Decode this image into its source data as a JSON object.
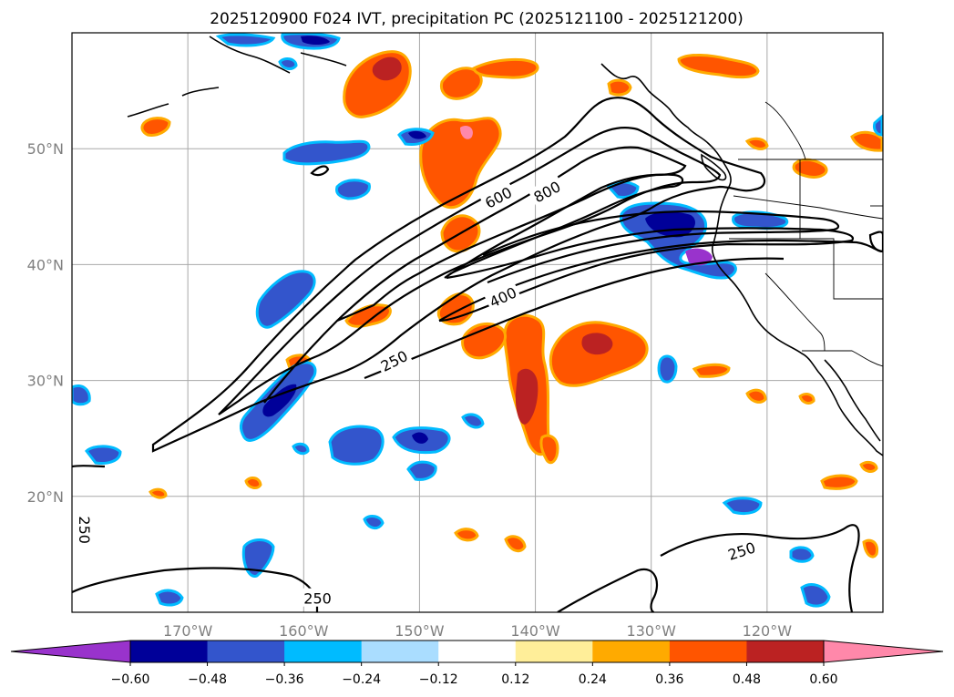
{
  "title": "2025120900 F024 IVT, precipitation PC (2025121100 - 2025121200)",
  "map": {
    "lon_range": [
      -180,
      -110
    ],
    "lat_range": [
      10,
      60
    ],
    "lon_ticks": [
      {
        "value": -170,
        "label": "170°W"
      },
      {
        "value": -160,
        "label": "160°W"
      },
      {
        "value": -150,
        "label": "150°W"
      },
      {
        "value": -140,
        "label": "140°W"
      },
      {
        "value": -130,
        "label": "130°W"
      },
      {
        "value": -120,
        "label": "120°W"
      }
    ],
    "lat_ticks": [
      {
        "value": 20,
        "label": "20°N"
      },
      {
        "value": 30,
        "label": "30°N"
      },
      {
        "value": 40,
        "label": "40°N"
      },
      {
        "value": 50,
        "label": "50°N"
      }
    ],
    "grid": true,
    "contour_labels": [
      {
        "text": "600",
        "lon": -143.2,
        "lat": 45.8,
        "rot": -28
      },
      {
        "text": "800",
        "lon": -139.0,
        "lat": 46.3,
        "rot": -28
      },
      {
        "text": "400",
        "lon": -142.8,
        "lat": 37.2,
        "rot": -25
      },
      {
        "text": "250",
        "lon": -152.2,
        "lat": 31.7,
        "rot": -27
      },
      {
        "text": "250",
        "lon": -122.2,
        "lat": 15.3,
        "rot": -18
      },
      {
        "text": "250",
        "lon": -178.9,
        "lat": 17.1,
        "rot": 90
      },
      {
        "text": "250",
        "lon": -158.8,
        "lat": 11.2,
        "rot": 0
      }
    ]
  },
  "colorbar": {
    "colors": [
      "#9933cc",
      "#000099",
      "#3355cc",
      "#00bbff",
      "#aaddff",
      "#ffffff",
      "#ffee99",
      "#ffaa00",
      "#ff5500",
      "#bb2222",
      "#ff88aa"
    ],
    "tick_labels": [
      "−0.60",
      "−0.48",
      "−0.36",
      "−0.24",
      "−0.12",
      "0.12",
      "0.24",
      "0.36",
      "0.48",
      "0.60"
    ],
    "extend": "both"
  }
}
